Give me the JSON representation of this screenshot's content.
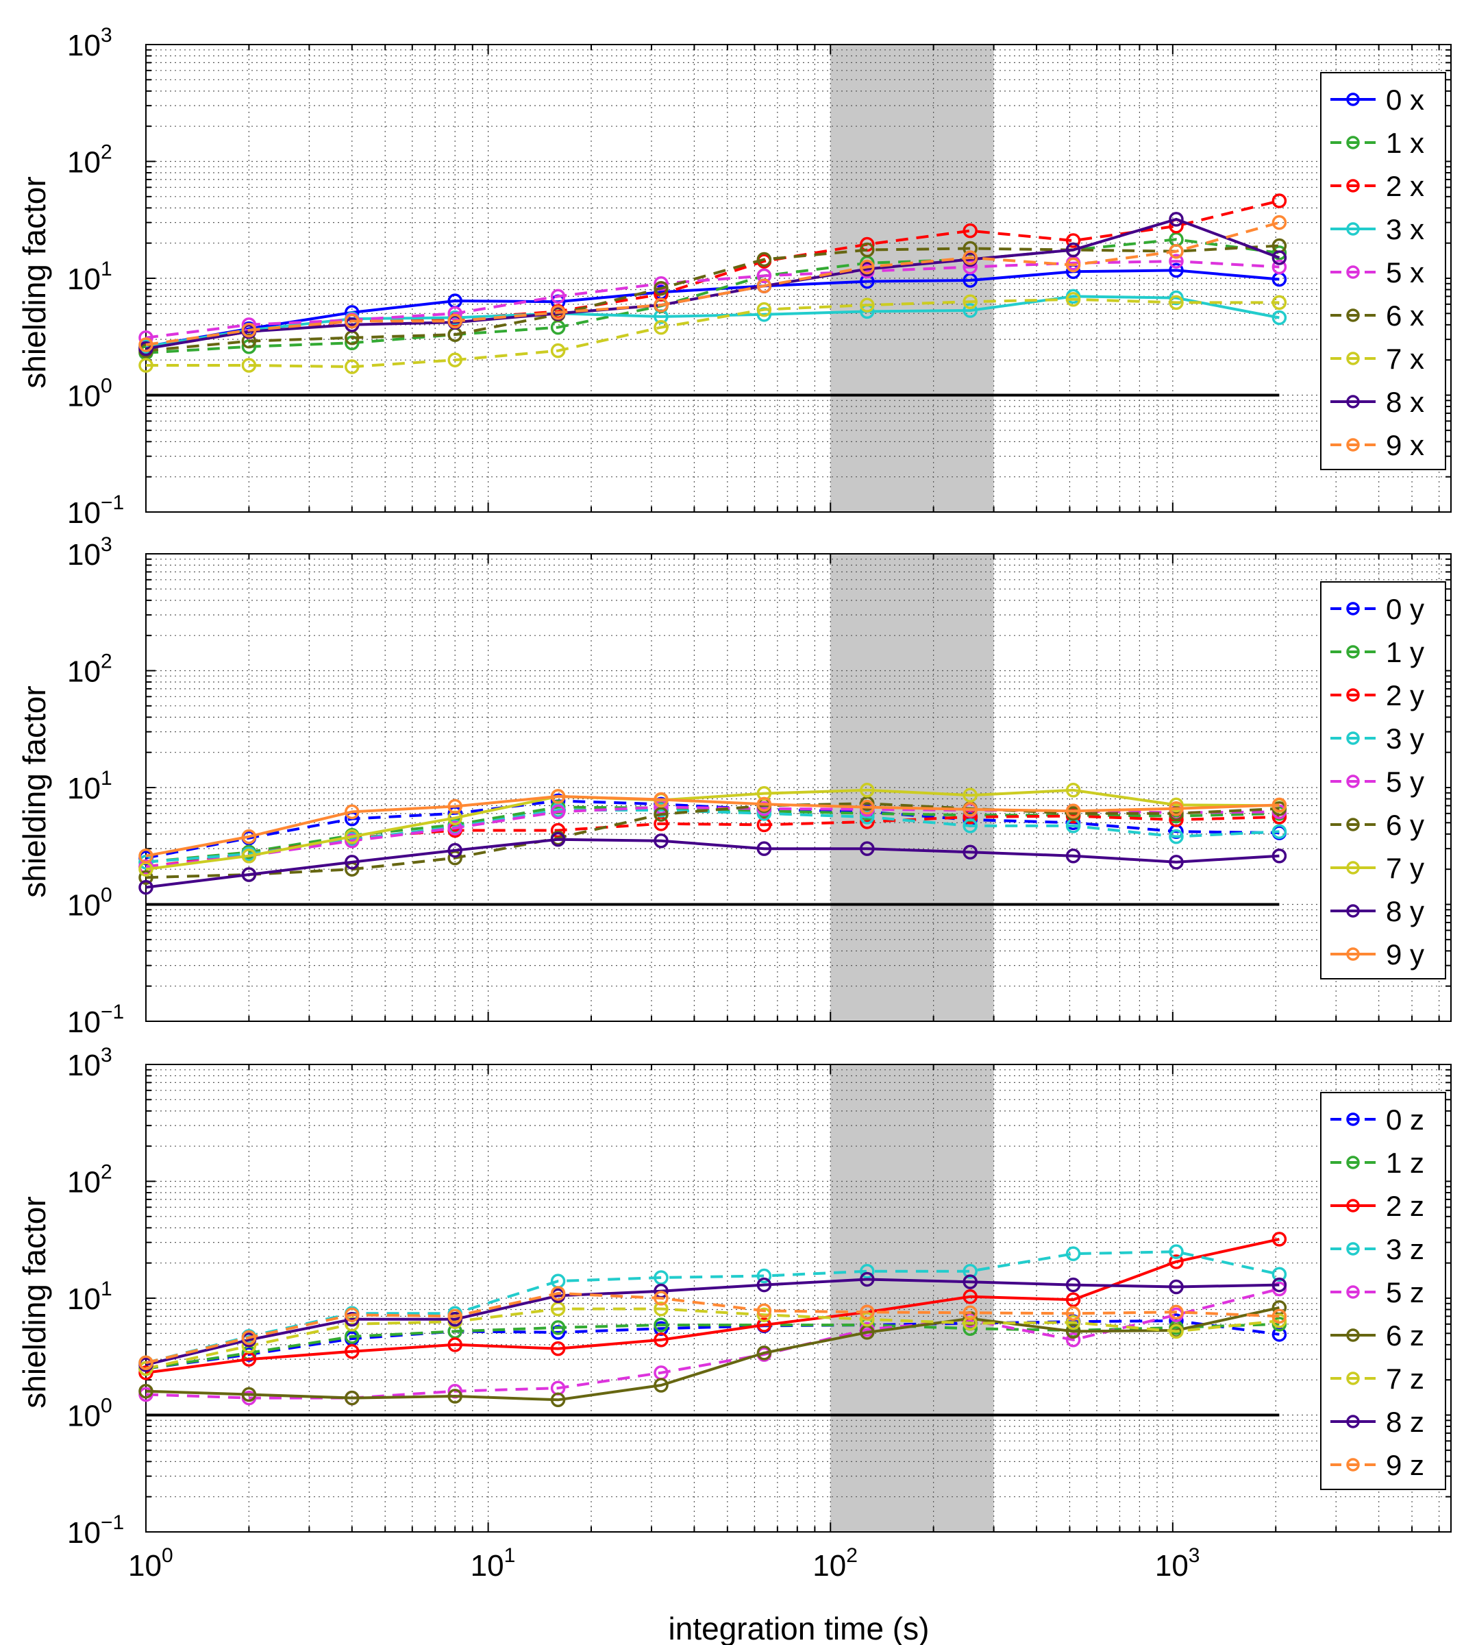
{
  "chart_data": {
    "type": "line",
    "xscale": "log",
    "yscale": "log",
    "xlim": [
      1,
      6500
    ],
    "ylim": [
      0.1,
      1000
    ],
    "xlabel": "integration time (s)",
    "x_ticks": [
      {
        "base": "10",
        "exp": "0"
      },
      {
        "base": "10",
        "exp": "1"
      },
      {
        "base": "10",
        "exp": "2"
      },
      {
        "base": "10",
        "exp": "3"
      }
    ],
    "y_ticks": [
      {
        "base": "10",
        "exp": "−1"
      },
      {
        "base": "10",
        "exp": "0"
      },
      {
        "base": "10",
        "exp": "1"
      },
      {
        "base": "10",
        "exp": "2"
      },
      {
        "base": "10",
        "exp": "3"
      }
    ],
    "shaded_region": [
      100,
      300
    ],
    "reference_line": 1,
    "grid": true,
    "x": [
      1,
      2,
      4,
      8,
      16,
      32,
      64,
      128,
      256,
      512,
      1024,
      2048
    ],
    "colors": {
      "0": "#0000ff",
      "1": "#33aa33",
      "2": "#ff0000",
      "3": "#22cccc",
      "5": "#dd33dd",
      "6": "#666611",
      "7": "#cccc22",
      "8": "#440088",
      "9": "#ff8833"
    },
    "panels": [
      {
        "ylabel": "shielding factor",
        "legend_position": "top-right",
        "series": [
          {
            "name": "0 x",
            "color_key": "0",
            "style": "solid",
            "values": [
              2.6,
              3.7,
              5.1,
              6.4,
              6.3,
              7.6,
              8.6,
              9.4,
              9.6,
              11.4,
              11.7,
              9.8
            ]
          },
          {
            "name": "1 x",
            "color_key": "1",
            "style": "dashed",
            "values": [
              2.3,
              2.6,
              2.8,
              3.3,
              3.8,
              5.8,
              10.5,
              13.5,
              14.5,
              17.5,
              21.5,
              16.5
            ]
          },
          {
            "name": "2 x",
            "color_key": "2",
            "style": "dashed",
            "values": [
              2.5,
              3.5,
              4.3,
              4.5,
              5.2,
              7.3,
              14.0,
              19.5,
              25.5,
              21.0,
              28.0,
              46.0
            ]
          },
          {
            "name": "3 x",
            "color_key": "3",
            "style": "solid",
            "values": [
              2.6,
              3.6,
              4.5,
              4.6,
              5.0,
              4.7,
              4.9,
              5.2,
              5.3,
              7.0,
              6.8,
              4.6
            ]
          },
          {
            "name": "5 x",
            "color_key": "5",
            "style": "dashed",
            "values": [
              3.1,
              4.0,
              4.4,
              5.0,
              7.0,
              9.0,
              10.5,
              11.5,
              12.5,
              13.5,
              14.0,
              12.5
            ]
          },
          {
            "name": "6 x",
            "color_key": "6",
            "style": "dashed",
            "values": [
              2.4,
              2.9,
              3.1,
              3.3,
              4.9,
              8.2,
              14.5,
              17.5,
              18.0,
              17.5,
              17.0,
              19.0
            ]
          },
          {
            "name": "7 x",
            "color_key": "7",
            "style": "dashed",
            "values": [
              1.8,
              1.8,
              1.75,
              2.0,
              2.4,
              3.8,
              5.4,
              5.9,
              6.3,
              6.6,
              6.2,
              6.2
            ]
          },
          {
            "name": "8 x",
            "color_key": "8",
            "style": "solid",
            "values": [
              2.5,
              3.5,
              4.0,
              4.2,
              5.0,
              5.9,
              8.6,
              12.0,
              14.5,
              17.5,
              32.0,
              15.0
            ]
          },
          {
            "name": "9 x",
            "color_key": "9",
            "style": "dashed",
            "values": [
              2.7,
              3.6,
              4.3,
              4.3,
              5.1,
              5.9,
              8.6,
              12.5,
              15.0,
              13.0,
              17.0,
              30.0
            ]
          }
        ]
      },
      {
        "ylabel": "shielding factor",
        "legend_position": "top-right",
        "series": [
          {
            "name": "0 y",
            "color_key": "0",
            "style": "dashed",
            "values": [
              2.5,
              3.7,
              5.4,
              6.0,
              7.7,
              7.2,
              6.5,
              6.2,
              5.3,
              5.0,
              4.2,
              4.1
            ]
          },
          {
            "name": "1 y",
            "color_key": "1",
            "style": "dashed",
            "values": [
              2.3,
              2.8,
              3.9,
              4.8,
              6.8,
              6.7,
              6.3,
              6.0,
              5.8,
              5.8,
              5.7,
              6.0
            ]
          },
          {
            "name": "2 y",
            "color_key": "2",
            "style": "dashed",
            "values": [
              2.1,
              2.7,
              3.7,
              4.3,
              4.3,
              4.9,
              4.8,
              5.1,
              5.6,
              5.7,
              5.3,
              5.6
            ]
          },
          {
            "name": "3 y",
            "color_key": "3",
            "style": "dashed",
            "values": [
              2.3,
              2.7,
              3.6,
              4.6,
              6.4,
              6.4,
              6.0,
              5.6,
              4.7,
              4.7,
              3.8,
              4.2
            ]
          },
          {
            "name": "5 y",
            "color_key": "5",
            "style": "dashed",
            "values": [
              2.1,
              2.6,
              3.5,
              4.5,
              6.2,
              6.8,
              6.6,
              6.5,
              6.4,
              6.3,
              6.1,
              6.2
            ]
          },
          {
            "name": "6 y",
            "color_key": "6",
            "style": "dashed",
            "values": [
              1.7,
              1.8,
              2.0,
              2.5,
              3.7,
              5.9,
              7.0,
              7.3,
              6.6,
              6.0,
              6.0,
              6.6
            ]
          },
          {
            "name": "7 y",
            "color_key": "7",
            "style": "solid",
            "values": [
              2.0,
              2.6,
              3.8,
              5.5,
              8.4,
              7.8,
              8.9,
              9.5,
              8.6,
              9.5,
              7.1,
              7.0
            ]
          },
          {
            "name": "8 y",
            "color_key": "8",
            "style": "solid",
            "values": [
              1.4,
              1.8,
              2.3,
              2.9,
              3.6,
              3.5,
              3.0,
              3.0,
              2.8,
              2.6,
              2.3,
              2.6
            ]
          },
          {
            "name": "9 y",
            "color_key": "9",
            "style": "solid",
            "values": [
              2.6,
              3.8,
              6.2,
              6.9,
              8.4,
              7.9,
              7.2,
              6.8,
              6.5,
              6.3,
              6.6,
              7.1
            ]
          }
        ]
      },
      {
        "ylabel": "shielding factor",
        "legend_position": "top-right",
        "series": [
          {
            "name": "0 z",
            "color_key": "0",
            "style": "dashed",
            "values": [
              2.5,
              3.3,
              4.5,
              5.2,
              5.1,
              5.5,
              5.8,
              5.9,
              6.1,
              6.3,
              6.4,
              4.9
            ]
          },
          {
            "name": "1 z",
            "color_key": "1",
            "style": "dashed",
            "values": [
              2.5,
              3.4,
              4.7,
              5.2,
              5.6,
              5.9,
              5.9,
              5.9,
              5.5,
              5.3,
              5.6,
              6.0
            ]
          },
          {
            "name": "2 z",
            "color_key": "2",
            "style": "solid",
            "values": [
              2.3,
              3.0,
              3.5,
              4.0,
              3.7,
              4.4,
              5.9,
              7.6,
              10.3,
              9.7,
              20.5,
              32.0
            ]
          },
          {
            "name": "3 z",
            "color_key": "3",
            "style": "dashed",
            "values": [
              2.8,
              4.7,
              7.4,
              7.4,
              14.0,
              15.0,
              15.5,
              17.0,
              17.0,
              24.0,
              25.0,
              16.0
            ]
          },
          {
            "name": "5 z",
            "color_key": "5",
            "style": "dashed",
            "values": [
              1.5,
              1.4,
              1.4,
              1.6,
              1.7,
              2.3,
              3.3,
              5.4,
              6.5,
              4.4,
              7.2,
              12.0
            ]
          },
          {
            "name": "6 z",
            "color_key": "6",
            "style": "solid",
            "values": [
              1.6,
              1.5,
              1.4,
              1.45,
              1.35,
              1.8,
              3.4,
              5.1,
              6.7,
              5.2,
              5.3,
              8.3
            ]
          },
          {
            "name": "7 z",
            "color_key": "7",
            "style": "dashed",
            "values": [
              2.5,
              3.9,
              6.0,
              6.3,
              8.1,
              8.1,
              7.2,
              6.6,
              6.1,
              6.2,
              5.2,
              6.4
            ]
          },
          {
            "name": "8 z",
            "color_key": "8",
            "style": "solid",
            "values": [
              2.7,
              4.4,
              6.6,
              6.6,
              10.5,
              11.5,
              13.0,
              14.5,
              13.8,
              13.0,
              12.5,
              13.0
            ]
          },
          {
            "name": "9 z",
            "color_key": "9",
            "style": "dashed",
            "values": [
              2.8,
              4.6,
              7.2,
              7.0,
              11.0,
              10.0,
              7.8,
              7.6,
              7.5,
              7.4,
              7.6,
              7.0
            ]
          }
        ]
      }
    ]
  }
}
